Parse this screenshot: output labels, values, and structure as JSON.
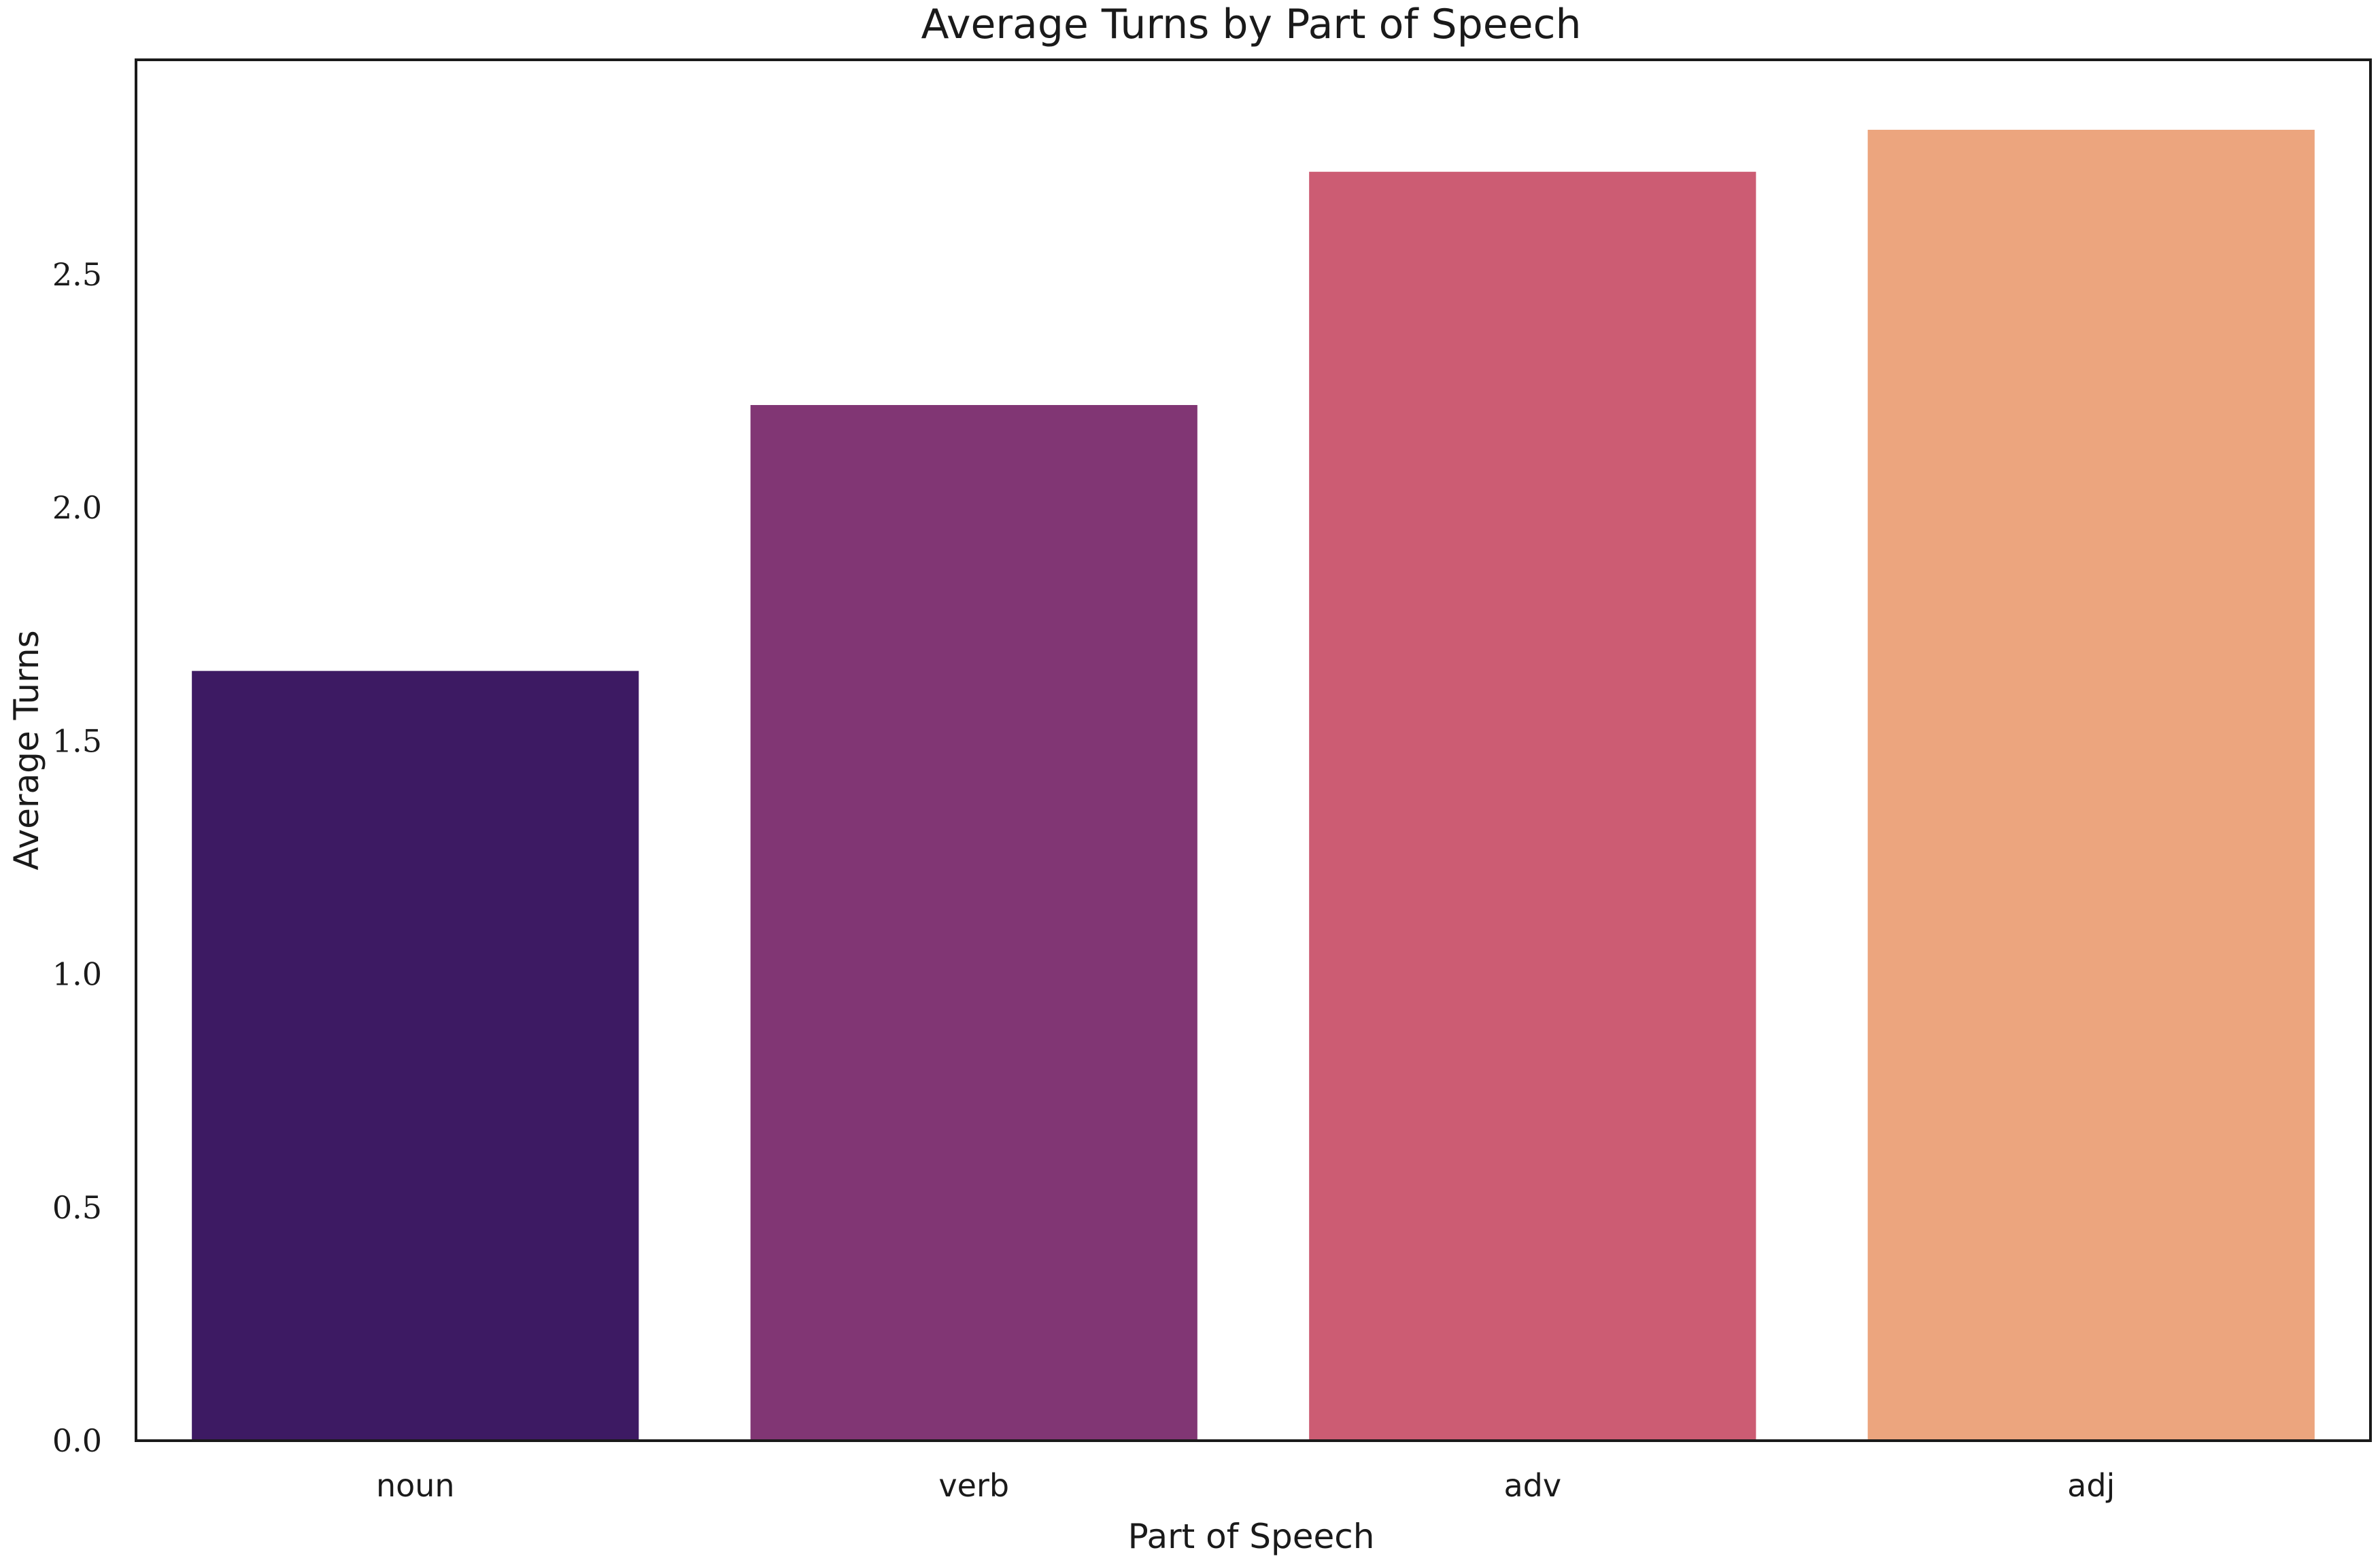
{
  "chart_data": {
    "type": "bar",
    "title": "Average Turns by Part of Speech",
    "xlabel": "Part of Speech",
    "ylabel": "Average Turns",
    "categories": [
      "noun",
      "verb",
      "adv",
      "adj"
    ],
    "values": [
      1.65,
      2.22,
      2.72,
      2.81
    ],
    "colors": [
      "#3d1a63",
      "#813674",
      "#cc5c73",
      "#eca57e"
    ],
    "ylim": [
      0,
      2.96
    ],
    "yticks": [
      0.0,
      0.5,
      1.0,
      1.5,
      2.0,
      2.5
    ],
    "ytick_labels": [
      "0.0",
      "0.5",
      "1.0",
      "1.5",
      "2.0",
      "2.5"
    ],
    "grid": false,
    "legend": "none"
  }
}
